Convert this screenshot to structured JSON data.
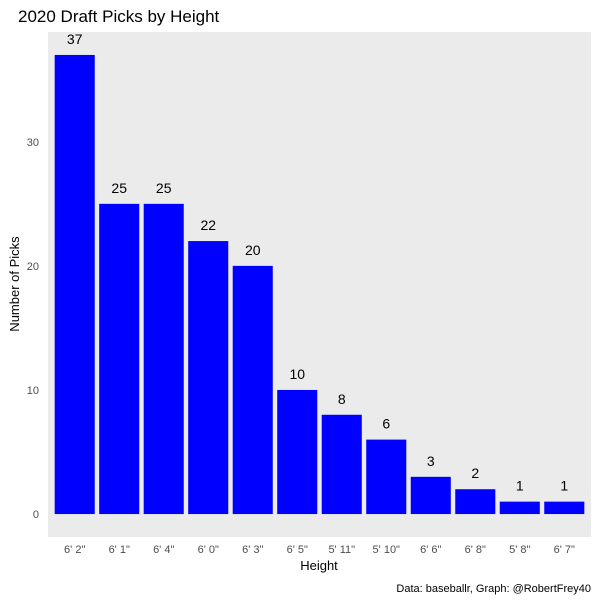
{
  "chart_data": {
    "type": "bar",
    "title": "2020 Draft Picks by Height",
    "xlabel": "Height",
    "ylabel": "Number of Picks",
    "caption": "Data: baseballr, Graph: @RobertFrey40",
    "categories": [
      "6' 2\"",
      "6' 1\"",
      "6' 4\"",
      "6' 0\"",
      "6' 3\"",
      "6' 5\"",
      "5' 11\"",
      "5' 10\"",
      "6' 6\"",
      "6' 8\"",
      "5' 8\"",
      "6' 7\""
    ],
    "values": [
      37,
      25,
      25,
      22,
      20,
      10,
      8,
      6,
      3,
      2,
      1,
      1
    ],
    "yticks": [
      0,
      10,
      20,
      30
    ],
    "ylim": [
      -1.85,
      38.85
    ],
    "grid": false,
    "legend": "none",
    "colors": {
      "bar": "#0000ff",
      "panel": "#ebebeb",
      "background": "#ffffff"
    }
  }
}
